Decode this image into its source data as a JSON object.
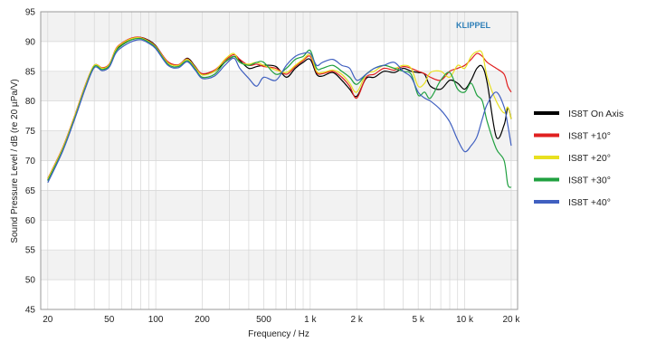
{
  "chart_data": {
    "type": "line",
    "xlabel": "Frequency / Hz",
    "ylabel": "Sound Pressure Level / dB (re 20 µPa/V)",
    "brand": "KLIPPEL",
    "x_scale": "log",
    "xlim": [
      18,
      22000
    ],
    "ylim": [
      45,
      95
    ],
    "x_ticks": [
      {
        "value": 20,
        "label": "20"
      },
      {
        "value": 50,
        "label": "50"
      },
      {
        "value": 100,
        "label": "100"
      },
      {
        "value": 200,
        "label": "200"
      },
      {
        "value": 500,
        "label": "500"
      },
      {
        "value": 1000,
        "label": "1 k"
      },
      {
        "value": 2000,
        "label": "2 k"
      },
      {
        "value": 5000,
        "label": "5 k"
      },
      {
        "value": 10000,
        "label": "10 k"
      },
      {
        "value": 20000,
        "label": "20 k"
      }
    ],
    "y_ticks": [
      45,
      50,
      55,
      60,
      65,
      70,
      75,
      80,
      85,
      90,
      95
    ],
    "grid": true,
    "legend_position": "right",
    "x": [
      20,
      25,
      30,
      35,
      40,
      45,
      50,
      55,
      60,
      70,
      80,
      90,
      100,
      120,
      140,
      160,
      180,
      200,
      240,
      280,
      320,
      350,
      400,
      450,
      500,
      600,
      700,
      800,
      900,
      1000,
      1100,
      1200,
      1400,
      1600,
      1800,
      2000,
      2300,
      2600,
      3000,
      3500,
      4000,
      4500,
      5000,
      5500,
      6000,
      7000,
      8000,
      9000,
      10000,
      11000,
      12000,
      13000,
      14000,
      16000,
      18000,
      19000,
      20000
    ],
    "series": [
      {
        "name": "IS8T On Axis",
        "color": "#000000",
        "values": [
          66.8,
          72.0,
          77.5,
          82.5,
          86.0,
          85.5,
          86.0,
          88.5,
          89.5,
          90.5,
          90.7,
          90.2,
          89.3,
          86.5,
          86.0,
          87.2,
          85.8,
          84.5,
          85.0,
          86.5,
          87.5,
          86.8,
          85.5,
          85.8,
          86.0,
          85.8,
          84.0,
          85.5,
          86.5,
          87.0,
          84.5,
          84.2,
          84.8,
          83.5,
          82.0,
          80.8,
          83.8,
          84.0,
          85.0,
          84.8,
          85.5,
          85.0,
          84.8,
          84.5,
          82.5,
          82.0,
          83.5,
          83.0,
          82.0,
          83.5,
          85.5,
          85.8,
          83.0,
          74.0,
          76.0,
          78.8,
          77.0
        ]
      },
      {
        "name": "IS8T +10°",
        "color": "#e02020",
        "values": [
          67.0,
          72.2,
          77.7,
          82.7,
          86.0,
          85.6,
          86.2,
          88.7,
          89.7,
          90.6,
          90.7,
          90.1,
          89.2,
          86.6,
          86.1,
          87.1,
          85.7,
          84.6,
          85.2,
          86.8,
          87.8,
          87.0,
          86.0,
          86.2,
          85.8,
          85.5,
          84.5,
          85.8,
          86.8,
          87.5,
          84.8,
          84.6,
          85.0,
          84.0,
          82.5,
          80.5,
          84.0,
          84.5,
          85.5,
          85.2,
          85.8,
          85.5,
          85.0,
          84.6,
          84.0,
          83.5,
          85.0,
          85.5,
          86.0,
          87.0,
          88.0,
          87.5,
          86.5,
          85.5,
          84.5,
          82.5,
          81.5
        ]
      },
      {
        "name": "IS8T +20°",
        "color": "#e8e020",
        "values": [
          66.9,
          72.1,
          77.6,
          82.6,
          86.0,
          85.5,
          86.1,
          88.6,
          89.6,
          90.5,
          90.6,
          90.0,
          89.1,
          86.4,
          86.0,
          87.0,
          85.6,
          84.4,
          85.0,
          87.0,
          88.0,
          86.5,
          86.2,
          86.5,
          86.0,
          85.2,
          84.8,
          86.0,
          87.0,
          87.8,
          85.0,
          84.8,
          85.2,
          84.5,
          83.0,
          81.5,
          84.5,
          85.0,
          86.0,
          85.5,
          86.0,
          85.5,
          82.5,
          83.0,
          84.8,
          85.0,
          84.0,
          86.0,
          85.5,
          87.5,
          88.3,
          88.0,
          84.0,
          80.0,
          78.0,
          79.0,
          77.0
        ]
      },
      {
        "name": "IS8T +30°",
        "color": "#20a040",
        "values": [
          66.6,
          71.8,
          77.3,
          82.3,
          85.8,
          85.3,
          85.9,
          88.3,
          89.3,
          90.3,
          90.5,
          89.9,
          89.0,
          86.2,
          85.8,
          86.8,
          85.4,
          84.0,
          84.5,
          86.5,
          87.5,
          86.5,
          86.0,
          86.5,
          86.5,
          84.5,
          85.5,
          87.0,
          87.5,
          88.5,
          85.5,
          85.5,
          86.0,
          85.0,
          84.0,
          82.8,
          84.5,
          85.5,
          86.0,
          85.5,
          85.0,
          84.5,
          81.0,
          81.5,
          80.5,
          83.5,
          84.8,
          82.0,
          81.5,
          83.0,
          81.0,
          80.0,
          76.5,
          72.0,
          70.0,
          66.0,
          65.5
        ]
      },
      {
        "name": "IS8T +40°",
        "color": "#4060c0",
        "values": [
          66.3,
          71.6,
          77.1,
          82.1,
          85.6,
          85.1,
          85.7,
          88.0,
          89.0,
          90.0,
          90.3,
          89.7,
          88.8,
          86.0,
          85.6,
          86.6,
          85.2,
          83.8,
          84.2,
          86.0,
          87.2,
          85.5,
          83.8,
          82.5,
          84.0,
          83.5,
          86.0,
          87.5,
          88.0,
          88.0,
          86.0,
          86.5,
          87.0,
          86.0,
          85.5,
          83.5,
          84.5,
          85.5,
          86.0,
          86.5,
          85.0,
          84.0,
          81.5,
          80.5,
          80.0,
          78.5,
          76.5,
          73.5,
          71.5,
          72.5,
          74.0,
          77.0,
          79.5,
          81.5,
          79.0,
          76.0,
          72.5
        ]
      }
    ]
  }
}
